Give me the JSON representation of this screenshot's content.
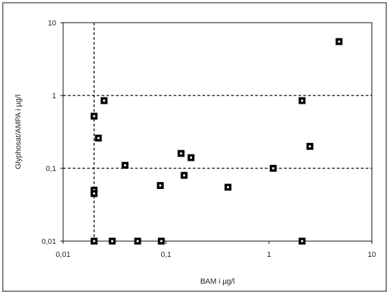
{
  "chart_data": {
    "type": "scatter",
    "title": "",
    "xlabel": "BAM i µg/l",
    "ylabel": "Glyphosat/AMPA i µg/l",
    "x_scale": "log",
    "y_scale": "log",
    "xlim": [
      0.01,
      10
    ],
    "ylim": [
      0.01,
      10
    ],
    "x_ticks": [
      0.01,
      0.1,
      1,
      10
    ],
    "x_tick_labels": [
      "0,01",
      "0,1",
      "1",
      "10"
    ],
    "y_ticks": [
      0.01,
      0.1,
      1,
      10
    ],
    "y_tick_labels": [
      "0,01",
      "0,1",
      "1",
      "10"
    ],
    "reference_lines": {
      "x": [
        0.02
      ],
      "y": [
        0.1,
        1
      ],
      "style": "dashed"
    },
    "grid": false,
    "legend": "none",
    "marker": "square",
    "colors": {
      "marker": "#000000",
      "axis": "#000000",
      "reference": "#000000"
    },
    "points": [
      {
        "x": 0.02,
        "y": 0.52
      },
      {
        "x": 0.025,
        "y": 0.85
      },
      {
        "x": 0.022,
        "y": 0.26
      },
      {
        "x": 0.02,
        "y": 0.05
      },
      {
        "x": 0.02,
        "y": 0.045
      },
      {
        "x": 0.02,
        "y": 0.01
      },
      {
        "x": 0.03,
        "y": 0.01
      },
      {
        "x": 0.04,
        "y": 0.11
      },
      {
        "x": 0.053,
        "y": 0.01
      },
      {
        "x": 0.088,
        "y": 0.058
      },
      {
        "x": 0.09,
        "y": 0.01
      },
      {
        "x": 0.14,
        "y": 0.16
      },
      {
        "x": 0.15,
        "y": 0.08
      },
      {
        "x": 0.175,
        "y": 0.14
      },
      {
        "x": 0.4,
        "y": 0.055
      },
      {
        "x": 1.1,
        "y": 0.1
      },
      {
        "x": 2.1,
        "y": 0.85
      },
      {
        "x": 2.1,
        "y": 0.01
      },
      {
        "x": 2.5,
        "y": 0.2
      },
      {
        "x": 4.8,
        "y": 5.5
      }
    ]
  }
}
